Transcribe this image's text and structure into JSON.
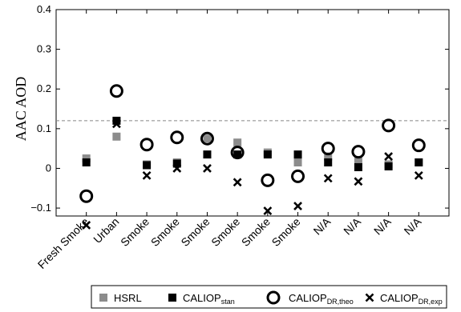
{
  "chart_data": {
    "type": "scatter",
    "title": "",
    "ylabel": "AAC AOD",
    "xlabel": "",
    "ylim": [
      -0.12,
      0.4
    ],
    "yticks": [
      -0.1,
      0,
      0.1,
      0.2,
      0.3,
      0.4
    ],
    "ytick_labels": [
      "−0.1",
      "0",
      "0.1",
      "0.2",
      "0.3",
      "0.4"
    ],
    "reference_line": 0.12,
    "categories": [
      "Fresh Smoke",
      "Urban",
      "Smoke",
      "Smoke",
      "Smoke",
      "Smoke",
      "Smoke",
      "Smoke",
      "N/A",
      "N/A",
      "N/A",
      "N/A"
    ],
    "series": [
      {
        "name": "HSRL",
        "marker": "square",
        "color": "#8c8c8c",
        "values": [
          0.025,
          0.08,
          0.01,
          0.015,
          0.075,
          0.065,
          0.04,
          0.015,
          0.03,
          0.02,
          0.01,
          0.015
        ]
      },
      {
        "name": "CALIOP",
        "sub": "stan",
        "marker": "square",
        "color": "#000000",
        "values": [
          0.015,
          0.12,
          0.008,
          0.012,
          0.035,
          0.035,
          0.035,
          0.035,
          0.015,
          0.003,
          0.005,
          0.015
        ]
      },
      {
        "name": "CALIOP",
        "sub": "DR,theo",
        "marker": "circle",
        "color": "#000000",
        "values": [
          -0.07,
          0.195,
          0.06,
          0.078,
          0.075,
          0.04,
          -0.03,
          -0.02,
          0.05,
          0.042,
          0.108,
          0.058
        ]
      },
      {
        "name": "CALIOP",
        "sub": "DR,exp",
        "marker": "x",
        "color": "#000000",
        "values": [
          -0.143,
          0.112,
          -0.018,
          0.0,
          0.0,
          -0.035,
          -0.107,
          -0.095,
          -0.025,
          -0.033,
          0.03,
          -0.018
        ]
      }
    ],
    "grid": false,
    "legend_position": "bottom"
  },
  "colors": {
    "hsrl": "#8c8c8c",
    "caliop": "#000000",
    "reference_line": "#888888"
  }
}
